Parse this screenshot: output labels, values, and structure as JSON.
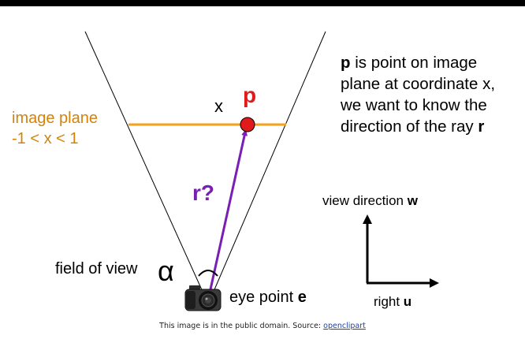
{
  "image_plane": {
    "line1": "image plane",
    "line2": "-1 < x < 1",
    "color": "#d4820a"
  },
  "labels": {
    "x": "x",
    "p": "p",
    "r": "r?",
    "field_of_view": "field of view",
    "alpha": "α",
    "eye_point_prefix": "eye point ",
    "eye_point_var": "e",
    "view_direction_prefix": "view direction ",
    "view_direction_var": "w",
    "right_prefix": "right ",
    "right_var": "u"
  },
  "description": {
    "var_p": "p",
    "line1_rest": " is point on image",
    "line2": "plane at coordinate x,",
    "line3": "we want to know the",
    "line4_prefix": "direction of the ray ",
    "var_r": "r"
  },
  "footer": {
    "text": "This image is in the public domain. Source: ",
    "link": "openclipart"
  },
  "colors": {
    "point": "#e01b1b",
    "ray": "#7a1fb4",
    "plane": "#f5a01a"
  },
  "icons": {
    "camera": "camera-icon"
  }
}
